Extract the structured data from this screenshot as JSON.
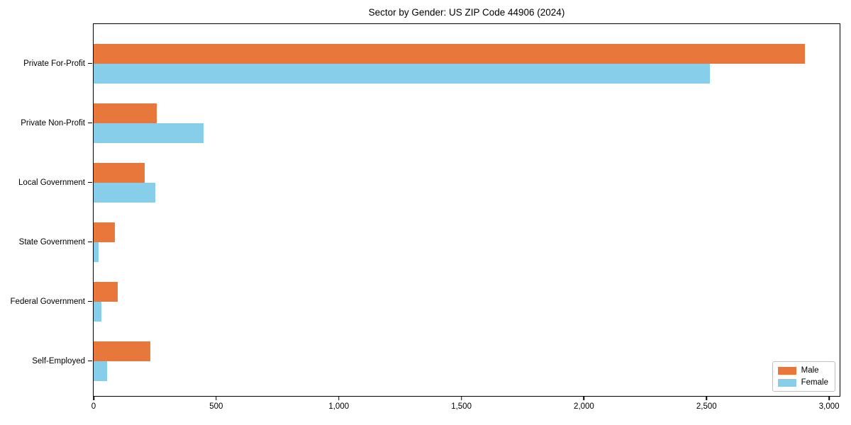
{
  "chart_data": {
    "type": "bar",
    "orientation": "horizontal",
    "title": "Sector by Gender: US ZIP Code 44906 (2024)",
    "categories": [
      "Private For-Profit",
      "Private Non-Profit",
      "Local Government",
      "State Government",
      "Federal Government",
      "Self-Employed"
    ],
    "series": [
      {
        "name": "Male",
        "color": "#e7773b",
        "values": [
          2900,
          258,
          207,
          88,
          98,
          232
        ]
      },
      {
        "name": "Female",
        "color": "#87ceeb",
        "values": [
          2515,
          448,
          252,
          20,
          31,
          55
        ]
      }
    ],
    "xlabel": "",
    "ylabel": "",
    "xlim": [
      0,
      3040
    ],
    "xticks": [
      0,
      500,
      1000,
      1500,
      2000,
      2500,
      3000
    ],
    "xtick_labels": [
      "0",
      "500",
      "1,000",
      "1,500",
      "2,000",
      "2,500",
      "3,000"
    ],
    "grid": false,
    "legend": {
      "position": "lower right",
      "entries": [
        "Male",
        "Female"
      ]
    },
    "colors": {
      "male": "#e7773b",
      "female": "#87ceeb",
      "spine": "#000000",
      "legend_border": "#bfbfbf",
      "background": "#ffffff"
    }
  }
}
